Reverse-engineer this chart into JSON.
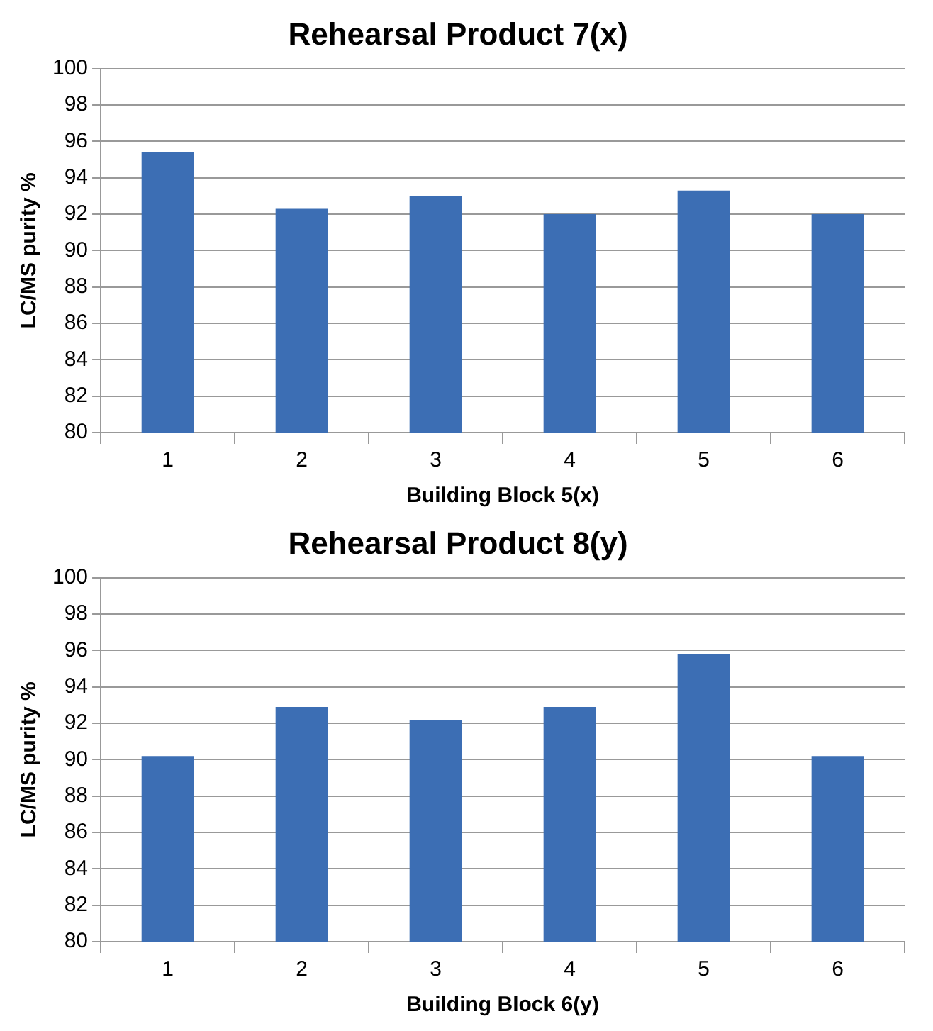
{
  "chart_data": [
    {
      "type": "bar",
      "title": "Rehearsal Product 7(x)",
      "xlabel": "Building Block 5(x)",
      "ylabel": "LC/MS purity %",
      "categories": [
        "1",
        "2",
        "3",
        "4",
        "5",
        "6"
      ],
      "values": [
        95.4,
        92.3,
        93.0,
        92.0,
        93.3,
        92.0
      ],
      "color": "#3c6eb4",
      "ylim": [
        80,
        100
      ],
      "yticks": [
        80,
        82,
        84,
        86,
        88,
        90,
        92,
        94,
        96,
        98,
        100
      ],
      "grid": "y"
    },
    {
      "type": "bar",
      "title": "Rehearsal Product 8(y)",
      "xlabel": "Building Block 6(y)",
      "ylabel": "LC/MS purity %",
      "categories": [
        "1",
        "2",
        "3",
        "4",
        "5",
        "6"
      ],
      "values": [
        90.2,
        92.9,
        92.2,
        92.9,
        95.8,
        90.2
      ],
      "color": "#3c6eb4",
      "ylim": [
        80,
        100
      ],
      "yticks": [
        80,
        82,
        84,
        86,
        88,
        90,
        92,
        94,
        96,
        98,
        100
      ],
      "grid": "y"
    }
  ]
}
